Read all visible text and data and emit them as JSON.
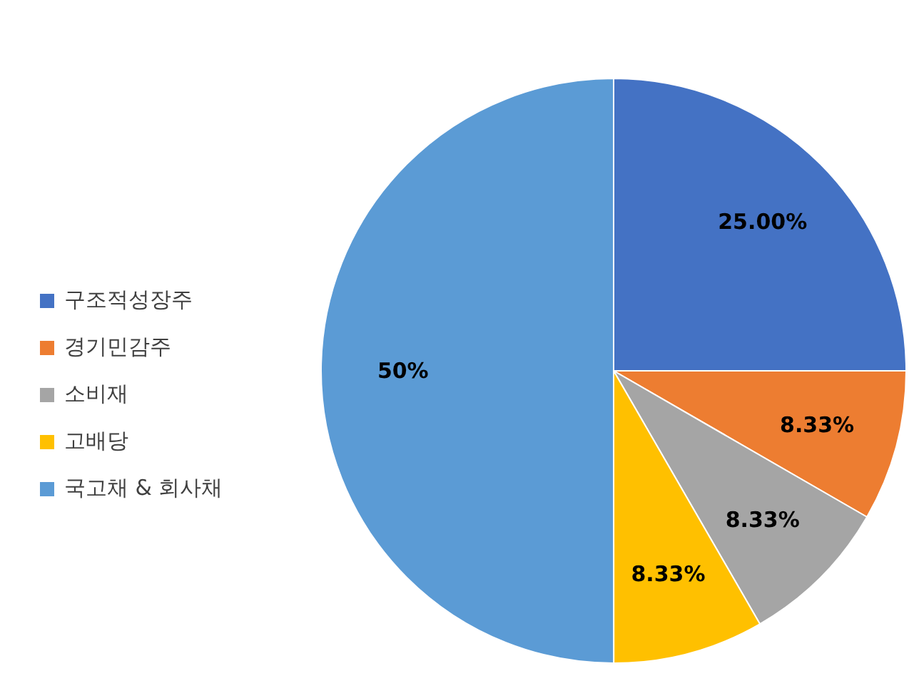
{
  "chart_data": {
    "type": "pie",
    "categories": [
      "구조적성장주",
      "경기민감주",
      "소비재",
      "고배당",
      "국고채 & 회사채"
    ],
    "values": [
      25,
      8.33,
      8.33,
      8.33,
      50
    ],
    "colors": [
      "#4472c4",
      "#ed7d31",
      "#a5a5a5",
      "#ffc000",
      "#5b9bd5"
    ],
    "value_labels": [
      "25.00%",
      "8.33%",
      "8.33%",
      "8.33%",
      "50%"
    ],
    "legend": "left"
  }
}
